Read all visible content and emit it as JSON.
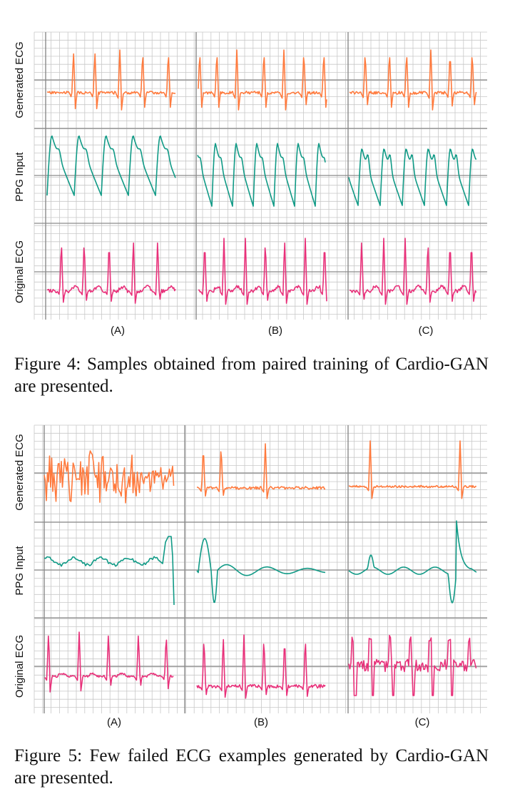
{
  "colors": {
    "generated": "#ff7a3d",
    "ppg": "#109a86",
    "original": "#e8317a",
    "grid_minor": "#c8c8c8",
    "grid_major": "#8a8a8a"
  },
  "figures": [
    {
      "row_labels": [
        "Generated ECG",
        "PPG Input",
        "Original ECG"
      ],
      "panel_labels": [
        "(A)",
        "(B)",
        "(C)"
      ],
      "caption_label": "Figure 4:",
      "caption_text": "Samples obtained from paired training of CardioGAN are presented.",
      "caption_display": "Figure 4: Samples obtained from paired training of Cardio-GAN are presented."
    },
    {
      "row_labels": [
        "Generated ECG",
        "PPG Input",
        "Original ECG"
      ],
      "panel_labels": [
        "(A)",
        "(B)",
        "(C)"
      ],
      "caption_label": "Figure 5:",
      "caption_text": "Few failed ECG examples generated by CardioGAN are presented.",
      "caption_display": "Figure 5: Few failed ECG examples generated by Cardio-GAN are presented."
    }
  ]
}
